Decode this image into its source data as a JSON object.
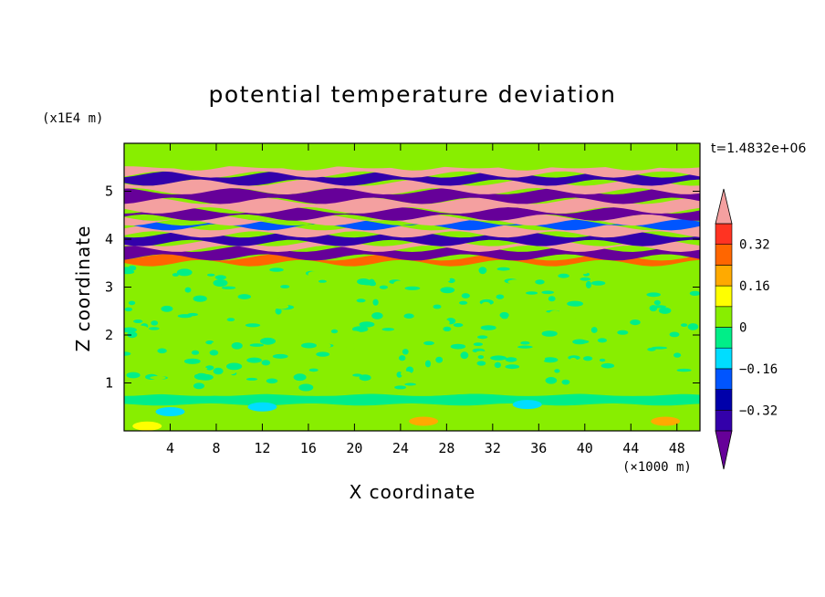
{
  "chart_data": {
    "type": "heatmap",
    "title": "potential temperature deviation",
    "xlabel": "X coordinate",
    "ylabel": "Z coordinate",
    "x_unit": "(×1000 m)",
    "y_unit": "(x1E4 m)",
    "timestamp": "t=1.4832e+06",
    "xlim": [
      0,
      50
    ],
    "ylim": [
      0,
      6
    ],
    "x_ticks": [
      4,
      8,
      12,
      16,
      20,
      24,
      28,
      32,
      36,
      40,
      44,
      48
    ],
    "x_tick_labels": [
      "4",
      "8",
      "12",
      "16",
      "20",
      "24",
      "28",
      "32",
      "36",
      "40",
      "44",
      "48"
    ],
    "y_ticks": [
      1,
      2,
      3,
      4,
      5
    ],
    "y_tick_labels": [
      "1",
      "2",
      "3",
      "4",
      "5"
    ],
    "colorbar": {
      "levels": [
        -0.4,
        -0.32,
        -0.24,
        -0.16,
        -0.08,
        0,
        0.08,
        0.16,
        0.24,
        0.32,
        0.4
      ],
      "tick_values": [
        0.32,
        0.16,
        0,
        -0.16,
        -0.32
      ],
      "tick_labels": [
        "0.32",
        "0.16",
        "0",
        "−0.16",
        "−0.32"
      ],
      "colors": [
        "#660099",
        "#3300aa",
        "#0000aa",
        "#0055ff",
        "#00ddff",
        "#00ee88",
        "#88ee00",
        "#ffff00",
        "#ffaa00",
        "#ff6600",
        "#ff3322",
        "#f4a0a0"
      ],
      "extend": "both"
    },
    "bands": [
      {
        "z": [
          0.0,
          0.15
        ],
        "value": 0.05
      },
      {
        "z": [
          0.15,
          0.55
        ],
        "value": 0.02
      },
      {
        "z": [
          0.55,
          0.75
        ],
        "value": -0.04
      },
      {
        "z": [
          0.75,
          0.82
        ],
        "value": 0.06
      },
      {
        "z": [
          0.82,
          3.5
        ],
        "value": 0.01
      },
      {
        "z": [
          3.5,
          3.62
        ],
        "value": 0.3
      },
      {
        "z": [
          3.62,
          3.8
        ],
        "value": -0.45
      },
      {
        "z": [
          3.8,
          3.92
        ],
        "value": 0.45
      },
      {
        "z": [
          3.92,
          4.1
        ],
        "value": -0.4
      },
      {
        "z": [
          4.1,
          4.25
        ],
        "value": 0.45
      },
      {
        "z": [
          4.25,
          4.35
        ],
        "value": -0.2
      },
      {
        "z": [
          4.35,
          4.45
        ],
        "value": 0.45
      },
      {
        "z": [
          4.45,
          4.6
        ],
        "value": -0.45
      },
      {
        "z": [
          4.6,
          4.8
        ],
        "value": 0.45
      },
      {
        "z": [
          4.8,
          5.0
        ],
        "value": -0.45
      },
      {
        "z": [
          5.0,
          5.18
        ],
        "value": 0.45
      },
      {
        "z": [
          5.18,
          5.35
        ],
        "value": -0.4
      },
      {
        "z": [
          5.35,
          5.5
        ],
        "value": 0.4
      },
      {
        "z": [
          5.5,
          6.0
        ],
        "value": 0.0
      }
    ]
  }
}
